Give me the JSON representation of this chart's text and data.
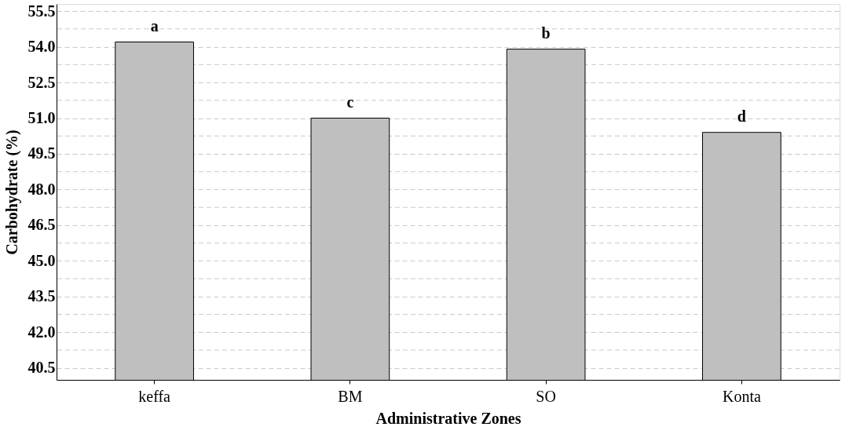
{
  "chart_data": {
    "type": "bar",
    "xlabel": "Administrative Zones",
    "ylabel": "Carbohydrate (%)",
    "categories": [
      "keffa",
      "BM",
      "SO",
      "Konta"
    ],
    "values": [
      54.2,
      51.0,
      53.9,
      50.4
    ],
    "color": "#bfbfbf",
    "ylim": [
      40.0,
      55.8
    ],
    "yticks": [
      40.5,
      {
        "value": 41.25,
        "label": null
      },
      {
        "value": 42,
        "label": "42.0"
      },
      {
        "value": 42.75,
        "label": null
      },
      43.5,
      {
        "value": 44.25,
        "label": null
      },
      {
        "value": 45,
        "label": "45.0"
      },
      {
        "value": 45.75,
        "label": null
      },
      46.5,
      {
        "value": 47.25,
        "label": null
      },
      {
        "value": 48,
        "label": "48.0"
      },
      {
        "value": 48.75,
        "label": null
      },
      49.5,
      {
        "value": 50.25,
        "label": null
      },
      {
        "value": 51,
        "label": "51.0"
      },
      {
        "value": 51.75,
        "label": null
      },
      52.5,
      {
        "value": 53.25,
        "label": null
      },
      {
        "value": 54,
        "label": "54.0"
      },
      {
        "value": 54.75,
        "label": null
      },
      55.5
    ],
    "grid": "y",
    "annotations": [
      {
        "text": "a",
        "x": "keffa",
        "y": 54.2
      },
      {
        "text": "c",
        "x": "BM",
        "y": 51.0
      },
      {
        "text": "b",
        "x": "SO",
        "y": 53.9
      },
      {
        "text": "d",
        "x": "Konta",
        "y": 50.4
      }
    ]
  }
}
